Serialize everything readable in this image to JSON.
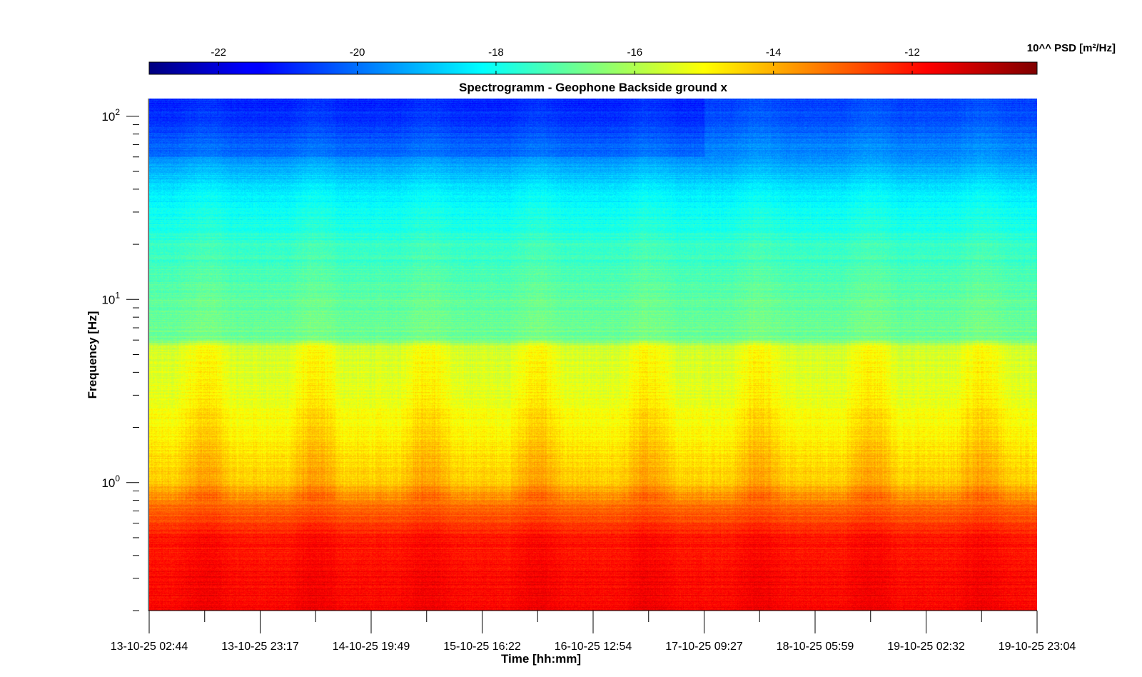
{
  "chart_data": {
    "type": "heatmap",
    "title": "Spectrogramm - Geophone Backside ground x",
    "xlabel": "Time [hh:mm]",
    "ylabel": "Frequency [Hz]",
    "yscale": "log",
    "ylim": [
      0.2,
      125
    ],
    "y_major_ticks": [
      {
        "value": 1,
        "base": "10",
        "exp": "0"
      },
      {
        "value": 10,
        "base": "10",
        "exp": "1"
      },
      {
        "value": 100,
        "base": "10",
        "exp": "2"
      }
    ],
    "x_tick_labels": [
      "13-10-25 02:44",
      "13-10-25 23:17",
      "14-10-25 19:49",
      "15-10-25 16:22",
      "16-10-25 12:54",
      "17-10-25 09:27",
      "18-10-25 05:59",
      "19-10-25 02:32",
      "19-10-25 23:04"
    ],
    "colorbar": {
      "label": "10^^ PSD [m²/Hz]",
      "range": [
        -23,
        -10.2
      ],
      "ticks": [
        "-22",
        "-20",
        "-18",
        "-16",
        "-14",
        "-12"
      ],
      "tick_values": [
        -22,
        -20,
        -18,
        -16,
        -14,
        -12
      ],
      "colormap": "jet",
      "placement": "top"
    },
    "psd_profile_log10": [
      {
        "freq": 0.2,
        "psd": -11.8
      },
      {
        "freq": 0.3,
        "psd": -11.9
      },
      {
        "freq": 0.5,
        "psd": -12.1
      },
      {
        "freq": 0.7,
        "psd": -13.0
      },
      {
        "freq": 1.0,
        "psd": -14.3
      },
      {
        "freq": 2.0,
        "psd": -15.0
      },
      {
        "freq": 3.0,
        "psd": -15.3
      },
      {
        "freq": 5.5,
        "psd": -15.6
      },
      {
        "freq": 6.0,
        "psd": -16.8
      },
      {
        "freq": 10.0,
        "psd": -17.0
      },
      {
        "freq": 20.0,
        "psd": -17.6
      },
      {
        "freq": 40.0,
        "psd": -18.5
      },
      {
        "freq": 60.0,
        "psd": -19.6
      },
      {
        "freq": 90.0,
        "psd": -20.3
      },
      {
        "freq": 125.0,
        "psd": -20.6
      }
    ]
  }
}
